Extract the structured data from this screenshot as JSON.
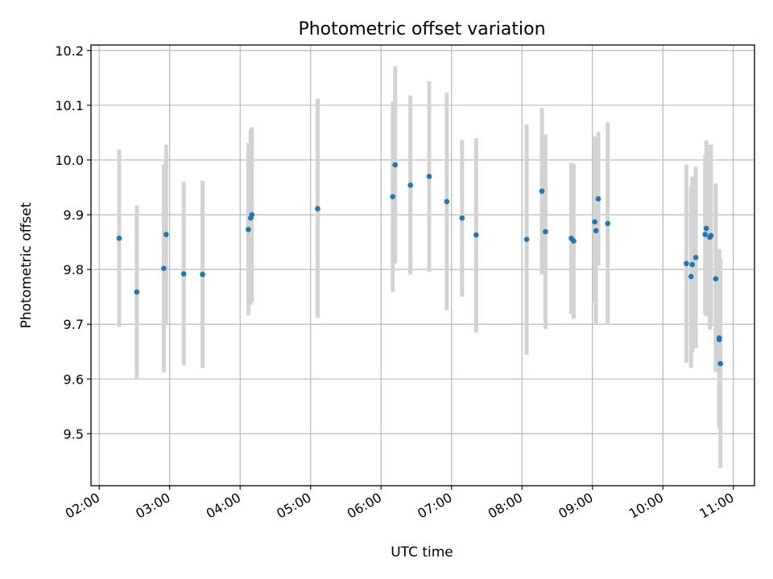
{
  "chart_data": {
    "type": "scatter",
    "title": "Photometric offset variation",
    "xlabel": "UTC time",
    "ylabel": "Photometric offset",
    "grid": true,
    "x_unit": "UTC time (HH:MM)",
    "xlim": [
      "01:53",
      "11:18"
    ],
    "ylim": [
      9.405,
      10.21
    ],
    "x_ticks": [
      "02:00",
      "03:00",
      "04:00",
      "05:00",
      "06:00",
      "07:00",
      "08:00",
      "09:00",
      "10:00",
      "11:00"
    ],
    "y_ticks": [
      9.5,
      9.6,
      9.7,
      9.8,
      9.9,
      10.0,
      10.1,
      10.2
    ],
    "series": [
      {
        "marker_color": "#1f77b4",
        "errorbar_color": "#d3d3d3",
        "points": [
          {
            "x": "02:17",
            "y": 9.857,
            "ylow": 9.695,
            "yhigh": 10.019
          },
          {
            "x": "02:32",
            "y": 9.759,
            "ylow": 9.6,
            "yhigh": 9.917
          },
          {
            "x": "02:55",
            "y": 9.802,
            "ylow": 9.612,
            "yhigh": 9.992
          },
          {
            "x": "02:57",
            "y": 9.864,
            "ylow": 9.7,
            "yhigh": 10.028
          },
          {
            "x": "03:12",
            "y": 9.792,
            "ylow": 9.625,
            "yhigh": 9.96
          },
          {
            "x": "03:28",
            "y": 9.791,
            "ylow": 9.62,
            "yhigh": 9.962
          },
          {
            "x": "04:07",
            "y": 9.873,
            "ylow": 9.716,
            "yhigh": 10.031
          },
          {
            "x": "04:09",
            "y": 9.894,
            "ylow": 9.735,
            "yhigh": 10.054
          },
          {
            "x": "04:10",
            "y": 9.9,
            "ylow": 9.74,
            "yhigh": 10.06
          },
          {
            "x": "05:06",
            "y": 9.911,
            "ylow": 9.712,
            "yhigh": 10.112
          },
          {
            "x": "06:10",
            "y": 9.933,
            "ylow": 9.759,
            "yhigh": 10.107
          },
          {
            "x": "06:12",
            "y": 9.991,
            "ylow": 9.811,
            "yhigh": 10.171
          },
          {
            "x": "06:25",
            "y": 9.954,
            "ylow": 9.791,
            "yhigh": 10.118
          },
          {
            "x": "06:41",
            "y": 9.97,
            "ylow": 9.796,
            "yhigh": 10.144
          },
          {
            "x": "06:56",
            "y": 9.924,
            "ylow": 9.725,
            "yhigh": 10.123
          },
          {
            "x": "07:09",
            "y": 9.894,
            "ylow": 9.75,
            "yhigh": 10.037
          },
          {
            "x": "07:21",
            "y": 9.863,
            "ylow": 9.685,
            "yhigh": 10.04
          },
          {
            "x": "08:04",
            "y": 9.855,
            "ylow": 9.644,
            "yhigh": 10.065
          },
          {
            "x": "08:17",
            "y": 9.943,
            "ylow": 9.791,
            "yhigh": 10.095
          },
          {
            "x": "08:20",
            "y": 9.869,
            "ylow": 9.691,
            "yhigh": 10.047
          },
          {
            "x": "08:42",
            "y": 9.857,
            "ylow": 9.719,
            "yhigh": 9.995
          },
          {
            "x": "08:44",
            "y": 9.852,
            "ylow": 9.71,
            "yhigh": 9.993
          },
          {
            "x": "09:02",
            "y": 9.887,
            "ylow": 9.74,
            "yhigh": 10.043
          },
          {
            "x": "09:03",
            "y": 9.871,
            "ylow": 9.7,
            "yhigh": 10.041
          },
          {
            "x": "09:05",
            "y": 9.929,
            "ylow": 9.807,
            "yhigh": 10.051
          },
          {
            "x": "09:13",
            "y": 9.884,
            "ylow": 9.699,
            "yhigh": 10.069
          },
          {
            "x": "10:20",
            "y": 9.811,
            "ylow": 9.63,
            "yhigh": 9.992
          },
          {
            "x": "10:24",
            "y": 9.787,
            "ylow": 9.62,
            "yhigh": 9.95
          },
          {
            "x": "10:25",
            "y": 9.809,
            "ylow": 9.648,
            "yhigh": 9.97
          },
          {
            "x": "10:28",
            "y": 9.822,
            "ylow": 9.656,
            "yhigh": 9.988
          },
          {
            "x": "10:36",
            "y": 9.864,
            "ylow": 9.719,
            "yhigh": 10.009
          },
          {
            "x": "10:37",
            "y": 9.875,
            "ylow": 9.714,
            "yhigh": 10.036
          },
          {
            "x": "10:40",
            "y": 9.859,
            "ylow": 9.69,
            "yhigh": 10.028
          },
          {
            "x": "10:41",
            "y": 9.862,
            "ylow": 9.696,
            "yhigh": 10.028
          },
          {
            "x": "10:45",
            "y": 9.783,
            "ylow": 9.613,
            "yhigh": 9.957
          },
          {
            "x": "10:48",
            "y": 9.672,
            "ylow": 9.512,
            "yhigh": 9.835
          },
          {
            "x": "10:49",
            "y": 9.628,
            "ylow": 9.437,
            "yhigh": 9.819
          },
          {
            "x": "10:48",
            "y": 9.675,
            "ylow": 9.515,
            "yhigh": 9.837
          }
        ]
      }
    ]
  }
}
